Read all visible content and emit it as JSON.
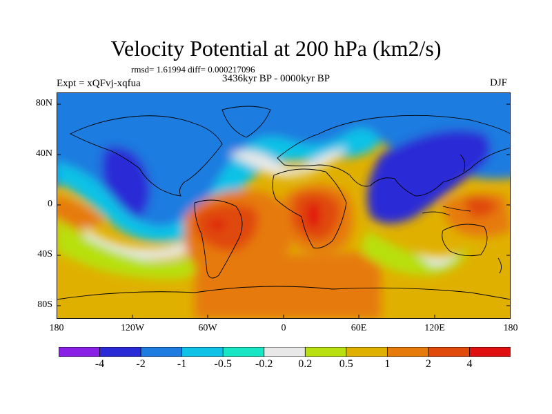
{
  "title": "Velocity Potential at 200 hPa (km2/s)",
  "stats": "rmsd= 1.61994 diff= 0.000217096",
  "experiment": "Expt = xQFvj-xqfua",
  "period": "3436kyr BP - 0000kyr BP",
  "season": "DJF",
  "y_axis_labels": [
    "80N",
    "40N",
    "0",
    "40S",
    "80S"
  ],
  "x_axis_labels": [
    "180",
    "120W",
    "60W",
    "0",
    "60E",
    "120E",
    "180"
  ],
  "colorbar": {
    "labels": [
      "-4",
      "-2",
      "-1",
      "-0.5",
      "-0.2",
      "0.2",
      "0.5",
      "1",
      "2",
      "4"
    ],
    "colors": [
      "#8a1fe6",
      "#2a2ad6",
      "#1e7be0",
      "#0fc2e6",
      "#18e6c4",
      "#e8e8e8",
      "#b8e010",
      "#e0b000",
      "#e67a0a",
      "#e04a0a",
      "#e01010"
    ]
  }
}
